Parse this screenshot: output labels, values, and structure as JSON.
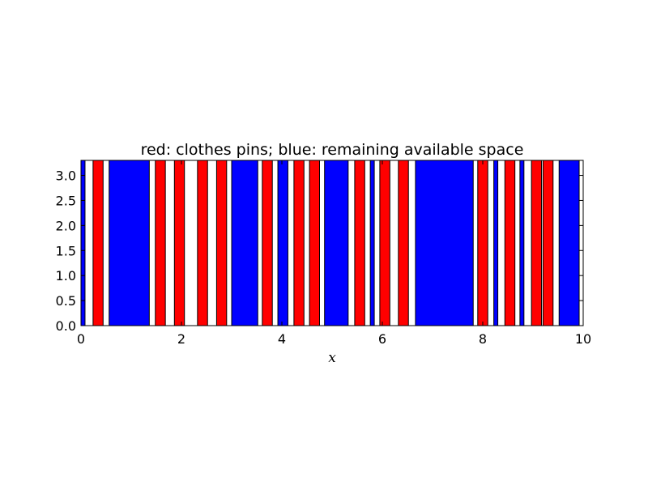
{
  "chart_data": {
    "type": "bar",
    "title": "red: clothes pins; blue: remaining available space",
    "xlabel": "x",
    "ylabel": "",
    "xlim": [
      0,
      10
    ],
    "ylim": [
      0,
      3.3
    ],
    "grid": false,
    "xticks": [
      0,
      2,
      4,
      6,
      8,
      10
    ],
    "xtick_labels": [
      "0",
      "2",
      "4",
      "6",
      "8",
      "10"
    ],
    "yticks": [
      0.0,
      0.5,
      1.0,
      1.5,
      2.0,
      2.5,
      3.0
    ],
    "ytick_labels": [
      "0.0",
      "0.5",
      "1.0",
      "1.5",
      "2.0",
      "2.5",
      "3.0"
    ],
    "colors": {
      "pin": "#ff0000",
      "space": "#0000ff",
      "edge": "#000000"
    },
    "series": [
      {
        "kind": "pin",
        "color": "#ff0000",
        "bars": [
          {
            "x_start": 0.24,
            "x_end": 0.44,
            "height": 3.3
          },
          {
            "x_start": 1.48,
            "x_end": 1.68,
            "height": 3.3
          },
          {
            "x_start": 1.86,
            "x_end": 2.06,
            "height": 3.3
          },
          {
            "x_start": 2.32,
            "x_end": 2.52,
            "height": 3.3
          },
          {
            "x_start": 2.7,
            "x_end": 2.9,
            "height": 3.3
          },
          {
            "x_start": 3.61,
            "x_end": 3.81,
            "height": 3.3
          },
          {
            "x_start": 4.24,
            "x_end": 4.44,
            "height": 3.3
          },
          {
            "x_start": 4.55,
            "x_end": 4.75,
            "height": 3.3
          },
          {
            "x_start": 5.45,
            "x_end": 5.65,
            "height": 3.3
          },
          {
            "x_start": 5.95,
            "x_end": 6.15,
            "height": 3.3
          },
          {
            "x_start": 6.32,
            "x_end": 6.52,
            "height": 3.3
          },
          {
            "x_start": 7.9,
            "x_end": 8.1,
            "height": 3.3
          },
          {
            "x_start": 8.44,
            "x_end": 8.64,
            "height": 3.3
          },
          {
            "x_start": 8.97,
            "x_end": 9.17,
            "height": 3.3
          },
          {
            "x_start": 9.2,
            "x_end": 9.4,
            "height": 3.3
          }
        ]
      },
      {
        "kind": "space",
        "color": "#0000ff",
        "bars": [
          {
            "x_start": 0.0,
            "x_end": 0.08,
            "height": 3.3
          },
          {
            "x_start": 0.56,
            "x_end": 1.36,
            "height": 3.3
          },
          {
            "x_start": 3.0,
            "x_end": 3.52,
            "height": 3.3
          },
          {
            "x_start": 3.92,
            "x_end": 4.12,
            "height": 3.3
          },
          {
            "x_start": 4.85,
            "x_end": 5.32,
            "height": 3.3
          },
          {
            "x_start": 5.76,
            "x_end": 5.84,
            "height": 3.3
          },
          {
            "x_start": 6.66,
            "x_end": 7.81,
            "height": 3.3
          },
          {
            "x_start": 8.22,
            "x_end": 8.3,
            "height": 3.3
          },
          {
            "x_start": 8.74,
            "x_end": 8.82,
            "height": 3.3
          },
          {
            "x_start": 9.52,
            "x_end": 9.92,
            "height": 3.3
          }
        ]
      }
    ]
  }
}
